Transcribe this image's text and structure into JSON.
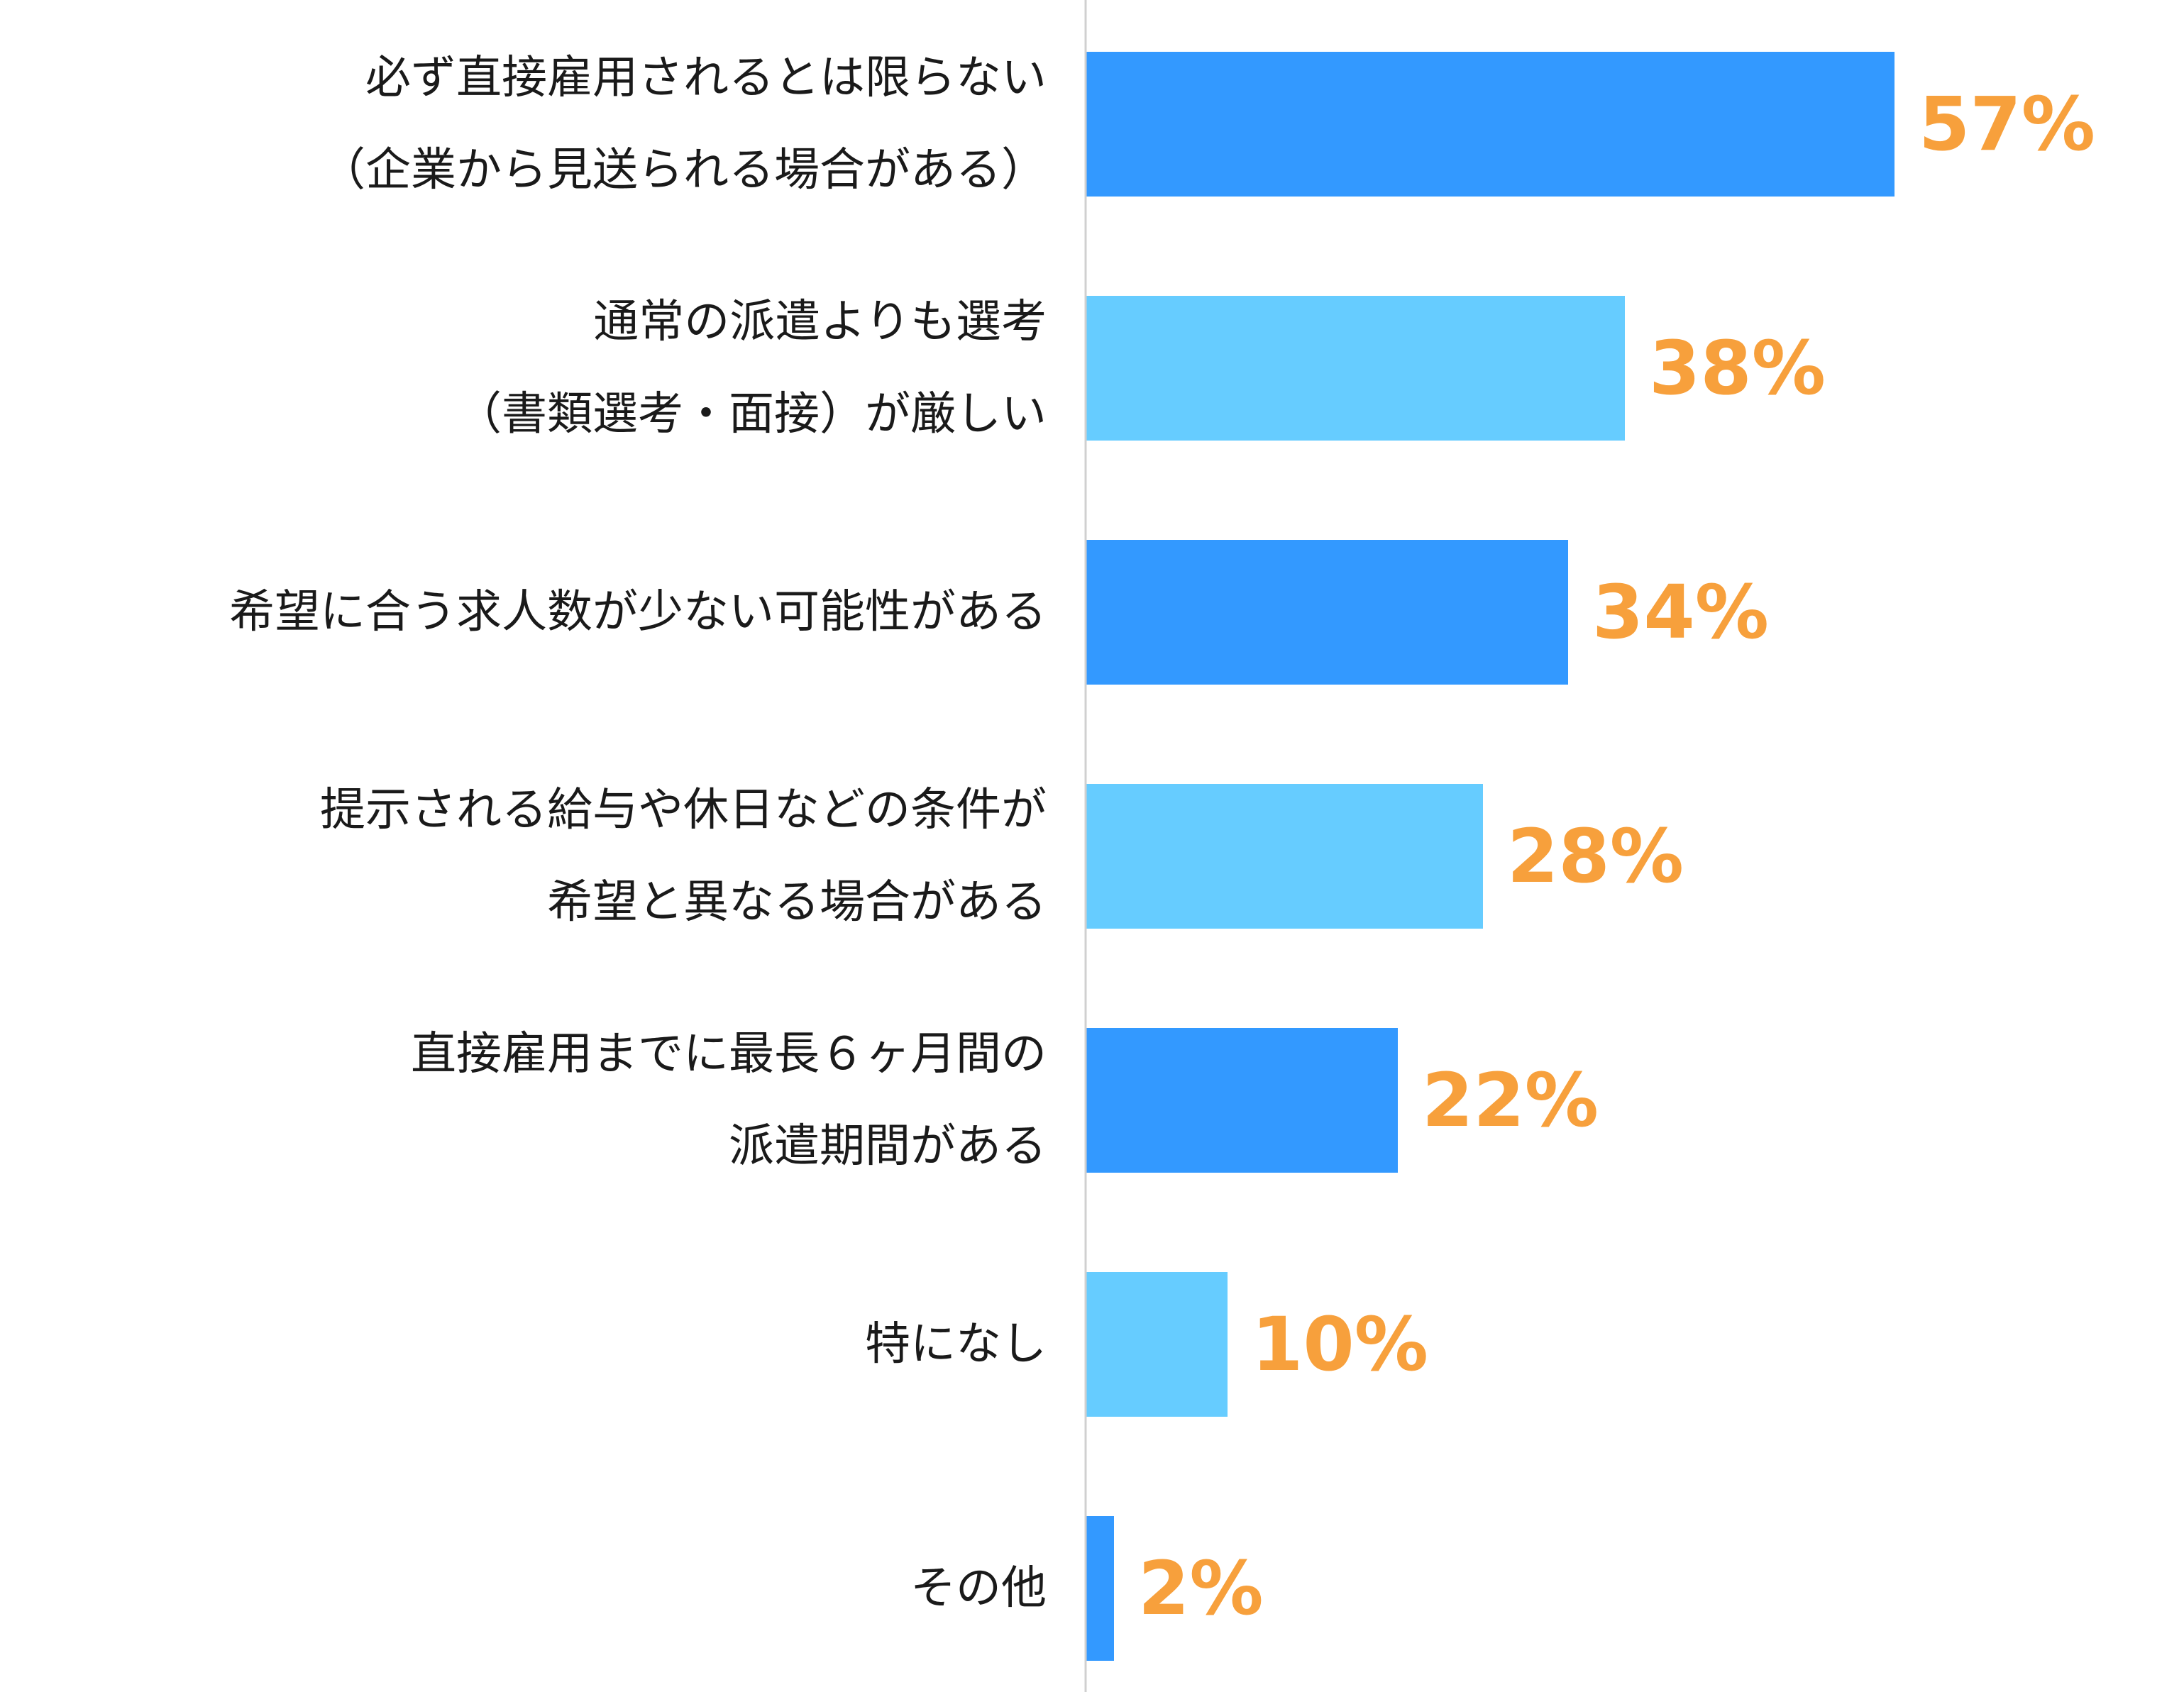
{
  "chart_data": {
    "type": "bar",
    "orientation": "horizontal",
    "categories": [
      [
        "必ず直接雇用されるとは限らない",
        "（企業から見送られる場合がある）"
      ],
      [
        "通常の派遣よりも選考",
        "（書類選考・面接）が厳しい"
      ],
      [
        "希望に合う求人数が少ない可能性がある"
      ],
      [
        "提示される給与や休日などの条件が",
        "希望と異なる場合がある"
      ],
      [
        "直接雇用までに最長６ヶ月間の",
        "派遣期間がある"
      ],
      [
        "特になし"
      ],
      [
        "その他"
      ]
    ],
    "values": [
      57,
      38,
      34,
      28,
      22,
      10,
      2
    ],
    "value_labels": [
      "57%",
      "38%",
      "34%",
      "28%",
      "22%",
      "10%",
      "2%"
    ],
    "unit": "%",
    "xlim": [
      0,
      100
    ],
    "grid": false,
    "legend": "none",
    "colors": {
      "bar_dark": "#3399ff",
      "bar_light": "#66ccff",
      "value_label": "#f7a03c",
      "axis_line": "#d0d0d0",
      "category_text": "#1a1a1a"
    },
    "bar_color_pattern": [
      "bar_dark",
      "bar_light",
      "bar_dark",
      "bar_light",
      "bar_dark",
      "bar_light",
      "bar_dark"
    ]
  }
}
